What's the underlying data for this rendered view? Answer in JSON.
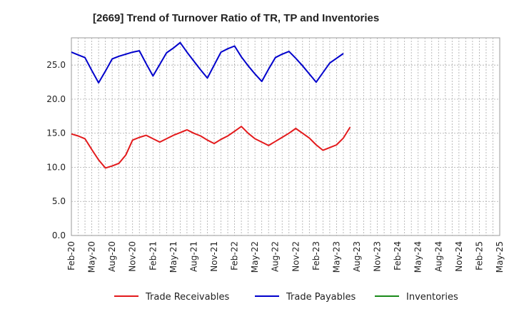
{
  "chart_data": {
    "type": "line",
    "title": "[2669]  Trend of Turnover Ratio of TR, TP and Inventories",
    "xlabel": "",
    "ylabel": "",
    "ylim": [
      0,
      29
    ],
    "yticks": [
      "0.0",
      "5.0",
      "10.0",
      "15.0",
      "20.0",
      "25.0"
    ],
    "x_tick_labels": [
      "Feb-20",
      "May-20",
      "Aug-20",
      "Nov-20",
      "Feb-21",
      "May-21",
      "Aug-21",
      "Nov-21",
      "Feb-22",
      "May-22",
      "Aug-22",
      "Nov-22",
      "Feb-23",
      "May-23",
      "Aug-23",
      "Nov-23",
      "Feb-24",
      "May-24",
      "Aug-24",
      "Nov-24",
      "Feb-25",
      "May-25"
    ],
    "grid": true,
    "legend_position": "bottom",
    "series": [
      {
        "name": "Trade Receivables",
        "color": "#e31a1c",
        "values": [
          14.9,
          14.6,
          14.2,
          12.6,
          11.1,
          9.9,
          10.2,
          10.6,
          11.8,
          14.0,
          14.4,
          14.7,
          14.2,
          13.7,
          14.2,
          14.7,
          15.1,
          15.5,
          15.0,
          14.6,
          14.0,
          13.5,
          14.1,
          14.6,
          15.3,
          16.0,
          15.0,
          14.2,
          13.7,
          13.2,
          13.8,
          14.4,
          15.0,
          15.7,
          15.0,
          14.3,
          13.3,
          12.5,
          12.9,
          13.3,
          14.3,
          15.9
        ]
      },
      {
        "name": "Trade Payables",
        "color": "#0000cc",
        "values": [
          26.9,
          26.5,
          26.1,
          24.2,
          22.4,
          24.1,
          25.9,
          26.3,
          26.6,
          26.9,
          27.1,
          25.2,
          23.4,
          25.1,
          26.8,
          27.5,
          28.3,
          26.9,
          25.6,
          24.3,
          23.1,
          25.0,
          26.9,
          27.4,
          27.8,
          26.2,
          24.9,
          23.7,
          22.6,
          24.4,
          26.1,
          26.6,
          27.0,
          26.0,
          24.9,
          23.7,
          22.5,
          23.9,
          25.3,
          26.0,
          26.7
        ]
      },
      {
        "name": "Inventories",
        "color": "#1a8a1a",
        "values": []
      }
    ]
  }
}
